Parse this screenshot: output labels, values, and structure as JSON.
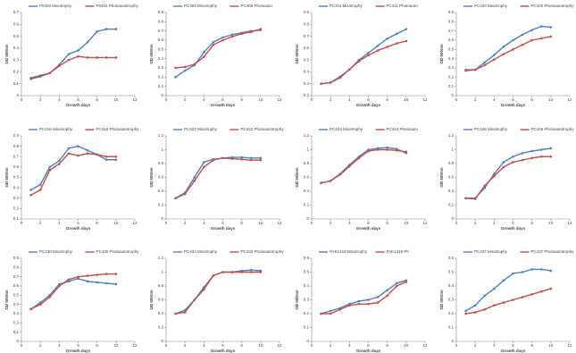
{
  "chart_data": [
    {
      "type": "line",
      "x_label": "Growth days",
      "y_label": "OD 600nm",
      "x": [
        1,
        2,
        3,
        4,
        5,
        6,
        7,
        8,
        9,
        10
      ],
      "xlim": [
        0,
        12
      ],
      "xticks": [
        0,
        2,
        4,
        6,
        8,
        10,
        12
      ],
      "ylim": [
        0,
        0.7
      ],
      "yticks": [
        0,
        0.1,
        0.2,
        0.3,
        0.4,
        0.5,
        0.6,
        0.7
      ],
      "series": [
        {
          "name": "P0402 Mixotrophy",
          "color": "#4f81bd",
          "values": [
            0.15,
            0.17,
            0.19,
            0.26,
            0.35,
            0.38,
            0.45,
            0.54,
            0.56,
            0.56
          ]
        },
        {
          "name": "P0402 Photoautotrophy",
          "color": "#c0504d",
          "values": [
            0.14,
            0.16,
            0.19,
            0.25,
            0.3,
            0.33,
            0.32,
            0.32,
            0.32,
            0.32
          ]
        }
      ]
    },
    {
      "type": "line",
      "x_label": "Growth days",
      "y_label": "OD 600nm",
      "x": [
        1,
        2,
        3,
        4,
        5,
        6,
        7,
        8,
        9,
        10
      ],
      "xlim": [
        0,
        12
      ],
      "xticks": [
        0,
        2,
        4,
        6,
        8,
        10,
        12
      ],
      "ylim": [
        0,
        0.9
      ],
      "yticks": [
        0,
        0.1,
        0.2,
        0.3,
        0.4,
        0.5,
        0.6,
        0.7,
        0.8,
        0.9
      ],
      "series": [
        {
          "name": "PC405 Mixotrophy",
          "color": "#4f81bd",
          "values": [
            0.2,
            0.27,
            0.33,
            0.47,
            0.58,
            0.63,
            0.66,
            0.68,
            0.7,
            0.71
          ]
        },
        {
          "name": "PC405 Photoauto",
          "color": "#c0504d",
          "values": [
            0.3,
            0.31,
            0.34,
            0.42,
            0.55,
            0.6,
            0.64,
            0.67,
            0.69,
            0.72
          ]
        }
      ]
    },
    {
      "type": "line",
      "x_label": "Growth days",
      "y_label": "OD 600nm",
      "x": [
        1,
        2,
        3,
        4,
        5,
        6,
        7,
        8,
        9,
        10
      ],
      "xlim": [
        0,
        12
      ],
      "xticks": [
        0,
        2,
        4,
        6,
        8,
        10,
        12
      ],
      "ylim": [
        0.2,
        0.9
      ],
      "yticks": [
        0.2,
        0.3,
        0.4,
        0.5,
        0.6,
        0.7,
        0.8,
        0.9
      ],
      "series": [
        {
          "name": "PC411 Mixotrophy",
          "color": "#4f81bd",
          "values": [
            0.3,
            0.31,
            0.36,
            0.42,
            0.5,
            0.56,
            0.62,
            0.68,
            0.72,
            0.76
          ]
        },
        {
          "name": "PC411 Photoauto",
          "color": "#c0504d",
          "values": [
            0.3,
            0.31,
            0.35,
            0.42,
            0.49,
            0.54,
            0.58,
            0.61,
            0.64,
            0.66
          ]
        }
      ]
    },
    {
      "type": "line",
      "x_label": "Growth days",
      "y_label": "OD 600nm",
      "x": [
        1,
        2,
        3,
        4,
        5,
        6,
        7,
        8,
        9,
        10
      ],
      "xlim": [
        0,
        12
      ],
      "xticks": [
        0,
        2,
        4,
        6,
        8,
        10,
        12
      ],
      "ylim": [
        0,
        0.9
      ],
      "yticks": [
        0,
        0.1,
        0.2,
        0.3,
        0.4,
        0.5,
        0.6,
        0.7,
        0.8,
        0.9
      ],
      "series": [
        {
          "name": "PC420 Mixotrophy",
          "color": "#4f81bd",
          "values": [
            0.28,
            0.28,
            0.36,
            0.44,
            0.53,
            0.6,
            0.66,
            0.71,
            0.75,
            0.74
          ]
        },
        {
          "name": "PC420 Photoautotrophy",
          "color": "#c0504d",
          "values": [
            0.27,
            0.28,
            0.33,
            0.39,
            0.45,
            0.5,
            0.55,
            0.6,
            0.62,
            0.64
          ]
        }
      ]
    },
    {
      "type": "line",
      "x_label": "Growth days",
      "y_label": "OD 600nm",
      "x": [
        1,
        2,
        3,
        4,
        5,
        6,
        7,
        8,
        9,
        10
      ],
      "xlim": [
        0,
        12
      ],
      "xticks": [
        0,
        2,
        4,
        6,
        8,
        10,
        12
      ],
      "ylim": [
        0.1,
        0.9
      ],
      "yticks": [
        0.1,
        0.2,
        0.3,
        0.4,
        0.5,
        0.6,
        0.7,
        0.8,
        0.9
      ],
      "series": [
        {
          "name": "PC416 Mixotrophy",
          "color": "#4f81bd",
          "values": [
            0.38,
            0.43,
            0.6,
            0.66,
            0.78,
            0.8,
            0.76,
            0.72,
            0.67,
            0.67
          ]
        },
        {
          "name": "PC416 Photoautotrophy",
          "color": "#c0504d",
          "values": [
            0.33,
            0.38,
            0.57,
            0.63,
            0.73,
            0.71,
            0.73,
            0.72,
            0.7,
            0.7
          ]
        }
      ]
    },
    {
      "type": "line",
      "x_label": "Growth days",
      "y_label": "OD 600nm",
      "x": [
        1,
        2,
        3,
        4,
        5,
        6,
        7,
        8,
        9,
        10
      ],
      "xlim": [
        0,
        12
      ],
      "xticks": [
        0,
        2,
        4,
        6,
        8,
        10,
        12
      ],
      "ylim": [
        0,
        1.2
      ],
      "yticks": [
        0,
        0.2,
        0.4,
        0.6,
        0.8,
        1,
        1.2
      ],
      "series": [
        {
          "name": "PC422 Mixotrophy",
          "color": "#4f81bd",
          "values": [
            0.3,
            0.38,
            0.6,
            0.82,
            0.86,
            0.88,
            0.89,
            0.89,
            0.88,
            0.88
          ]
        },
        {
          "name": "PC422 Photoautotrophy",
          "color": "#c0504d",
          "values": [
            0.3,
            0.36,
            0.55,
            0.75,
            0.85,
            0.88,
            0.87,
            0.86,
            0.85,
            0.85
          ]
        }
      ]
    },
    {
      "type": "line",
      "x_label": "Growth days",
      "y_label": "OD 600nm",
      "x": [
        1,
        2,
        3,
        4,
        5,
        6,
        7,
        8,
        9,
        10
      ],
      "xlim": [
        0,
        12
      ],
      "xticks": [
        0,
        2,
        4,
        6,
        8,
        10,
        12
      ],
      "ylim": [
        0,
        1.2
      ],
      "yticks": [
        0,
        0.2,
        0.4,
        0.6,
        0.8,
        1,
        1.2
      ],
      "series": [
        {
          "name": "PC424 Mixotrophy",
          "color": "#4f81bd",
          "values": [
            0.52,
            0.55,
            0.65,
            0.78,
            0.9,
            1,
            1.02,
            1.03,
            1.01,
            0.95
          ]
        },
        {
          "name": "PC424 Photoauto",
          "color": "#c0504d",
          "values": [
            0.52,
            0.55,
            0.64,
            0.76,
            0.88,
            0.98,
            1.0,
            1.0,
            0.99,
            0.97
          ]
        }
      ]
    },
    {
      "type": "line",
      "x_label": "Growth days",
      "y_label": "OD 600nm",
      "x": [
        1,
        2,
        3,
        4,
        5,
        6,
        7,
        8,
        9,
        10
      ],
      "xlim": [
        0,
        12
      ],
      "xticks": [
        0,
        2,
        4,
        6,
        8,
        10,
        12
      ],
      "ylim": [
        0,
        1.2
      ],
      "yticks": [
        0,
        0.2,
        0.4,
        0.6,
        0.8,
        1,
        1.2
      ],
      "series": [
        {
          "name": "PC426 Mixotrophy",
          "color": "#4f81bd",
          "values": [
            0.3,
            0.3,
            0.45,
            0.65,
            0.82,
            0.9,
            0.95,
            0.98,
            1,
            1.02
          ]
        },
        {
          "name": "PC426 Photoautotrophy",
          "color": "#c0504d",
          "values": [
            0.3,
            0.29,
            0.48,
            0.62,
            0.75,
            0.82,
            0.85,
            0.88,
            0.9,
            0.9
          ]
        }
      ]
    },
    {
      "type": "line",
      "x_label": "Growth days",
      "y_label": "OD 600nm",
      "x": [
        1,
        2,
        3,
        4,
        5,
        6,
        7,
        8,
        9,
        10
      ],
      "xlim": [
        0,
        12
      ],
      "xticks": [
        0,
        2,
        4,
        6,
        8,
        10,
        12
      ],
      "ylim": [
        0,
        0.9
      ],
      "yticks": [
        0,
        0.1,
        0.2,
        0.3,
        0.4,
        0.5,
        0.6,
        0.7,
        0.8,
        0.9
      ],
      "series": [
        {
          "name": "PC430 Mixotrophy",
          "color": "#4f81bd",
          "values": [
            0.35,
            0.42,
            0.5,
            0.62,
            0.65,
            0.68,
            0.65,
            0.64,
            0.63,
            0.62
          ]
        },
        {
          "name": "PC430 Photoautotrophy",
          "color": "#c0504d",
          "values": [
            0.35,
            0.4,
            0.48,
            0.6,
            0.67,
            0.7,
            0.71,
            0.72,
            0.73,
            0.73
          ]
        }
      ]
    },
    {
      "type": "line",
      "x_label": "Growth days",
      "y_label": "OD 600nm",
      "x": [
        1,
        2,
        3,
        4,
        5,
        6,
        7,
        8,
        9,
        10
      ],
      "xlim": [
        0,
        12
      ],
      "xticks": [
        0,
        2,
        4,
        6,
        8,
        10,
        12
      ],
      "ylim": [
        0,
        1.2
      ],
      "yticks": [
        0,
        0.2,
        0.4,
        0.6,
        0.8,
        1,
        1.2
      ],
      "series": [
        {
          "name": "PC433 Mixotrophy",
          "color": "#4f81bd",
          "values": [
            0.4,
            0.45,
            0.6,
            0.78,
            0.95,
            1,
            1,
            1.02,
            1.03,
            1.02
          ]
        },
        {
          "name": "PC433 Photoautotrophy",
          "color": "#c0504d",
          "values": [
            0.4,
            0.42,
            0.6,
            0.75,
            0.95,
            1,
            1,
            1,
            1,
            1
          ]
        }
      ]
    },
    {
      "type": "line",
      "x_label": "Growth days",
      "y_label": "OD 600nm",
      "x": [
        1,
        2,
        3,
        4,
        5,
        6,
        7,
        8,
        9,
        10
      ],
      "xlim": [
        0,
        12
      ],
      "xticks": [
        0,
        2,
        4,
        6,
        8,
        10,
        12
      ],
      "ylim": [
        0,
        0.6
      ],
      "yticks": [
        0,
        0.1,
        0.2,
        0.3,
        0.4,
        0.5,
        0.6
      ],
      "series": [
        {
          "name": "PAK1418 Mixotrophy",
          "color": "#4f81bd",
          "values": [
            0.2,
            0.22,
            0.24,
            0.27,
            0.29,
            0.3,
            0.32,
            0.37,
            0.42,
            0.44
          ]
        },
        {
          "name": "PAK1418 Ph",
          "color": "#c0504d",
          "values": [
            0.2,
            0.2,
            0.23,
            0.26,
            0.27,
            0.27,
            0.28,
            0.33,
            0.4,
            0.43
          ]
        }
      ]
    },
    {
      "type": "line",
      "x_label": "Growth days",
      "y_label": "OD 600nm",
      "x": [
        1,
        2,
        3,
        4,
        5,
        6,
        7,
        8,
        9,
        10
      ],
      "xlim": [
        0,
        12
      ],
      "xticks": [
        0,
        2,
        4,
        6,
        8,
        10,
        12
      ],
      "ylim": [
        0,
        0.6
      ],
      "yticks": [
        0,
        0.1,
        0.2,
        0.3,
        0.4,
        0.5,
        0.6
      ],
      "series": [
        {
          "name": "PC437 Mixotrophy",
          "color": "#4f81bd",
          "values": [
            0.22,
            0.26,
            0.33,
            0.38,
            0.44,
            0.49,
            0.5,
            0.52,
            0.52,
            0.51
          ]
        },
        {
          "name": "PC437 Photoautotrophy",
          "color": "#c0504d",
          "values": [
            0.2,
            0.21,
            0.23,
            0.26,
            0.28,
            0.3,
            0.32,
            0.34,
            0.36,
            0.38
          ]
        }
      ]
    }
  ]
}
